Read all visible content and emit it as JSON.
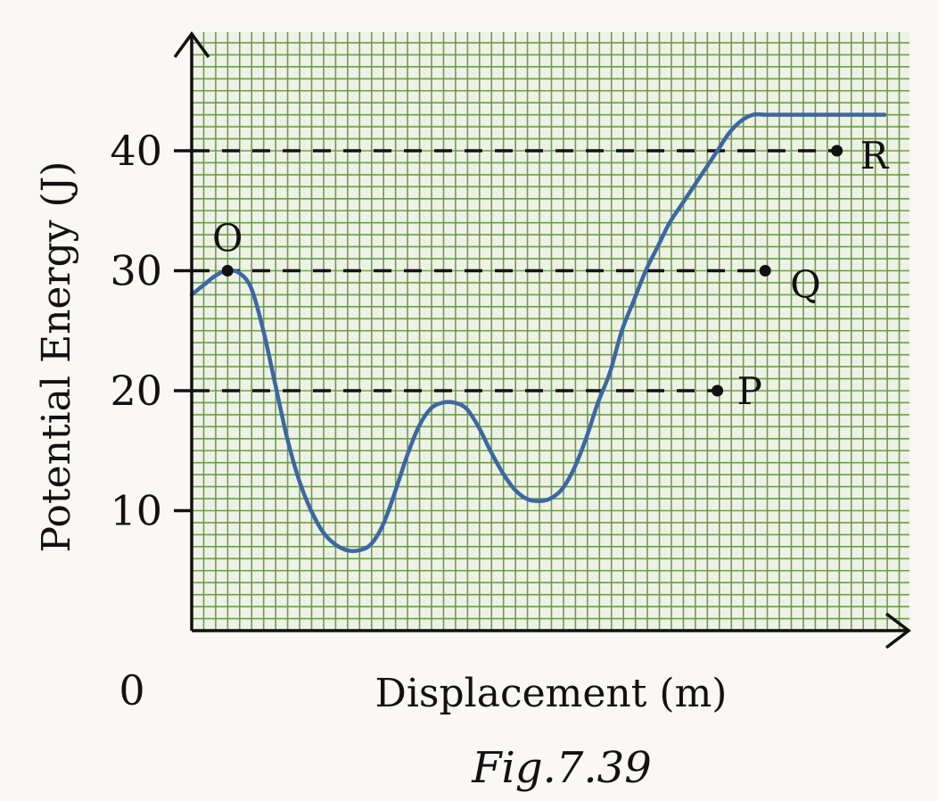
{
  "chart_data": {
    "type": "line",
    "title": "",
    "xlabel": "Displacement (m)",
    "ylabel": "Potential Energy (J)",
    "origin_label": "0",
    "caption": "Fig.7.39",
    "ylim": [
      0,
      50
    ],
    "xlim": [
      0,
      30
    ],
    "yticks": [
      10,
      20,
      30,
      40
    ],
    "ytick_labels": [
      "10",
      "20",
      "30",
      "40"
    ],
    "grid": true,
    "x": [
      0,
      0.5,
      1,
      1.5,
      2,
      2.5,
      3,
      3.5,
      4,
      4.5,
      5,
      5.5,
      6,
      6.5,
      7,
      7.5,
      8,
      8.5,
      9,
      9.5,
      10,
      10.5,
      11,
      11.5,
      12,
      12.5,
      13,
      13.5,
      14,
      14.5,
      15,
      15.5,
      16,
      16.5,
      17,
      17.5,
      18,
      18.5,
      19,
      19.5,
      20,
      20.5,
      21,
      21.5,
      22,
      22.5,
      23,
      23.5,
      24,
      24.5,
      25,
      25.5,
      26,
      26.5,
      27,
      27.5,
      28,
      28.5,
      29
    ],
    "y": [
      28,
      28.8,
      29.6,
      30,
      29.8,
      28.5,
      25,
      20.5,
      16,
      12.5,
      10,
      8.2,
      7.2,
      6.7,
      6.7,
      7.2,
      8.8,
      11.5,
      14.5,
      17,
      18.5,
      19,
      19,
      18.5,
      17,
      15,
      13.2,
      11.8,
      11,
      10.8,
      11,
      11.8,
      13.5,
      16,
      19,
      21.5,
      25,
      27.5,
      30,
      32,
      34,
      35.5,
      37,
      38.5,
      40,
      41.5,
      42.5,
      43,
      43,
      43,
      43,
      43,
      43,
      43,
      43,
      43,
      43,
      43,
      43
    ],
    "points": [
      {
        "label": "O",
        "x": 1.5,
        "y": 30
      },
      {
        "label": "P",
        "x": 22,
        "y": 20
      },
      {
        "label": "Q",
        "x": 24,
        "y": 30
      },
      {
        "label": "R",
        "x": 27,
        "y": 40
      }
    ],
    "dashed_levels": [
      {
        "y": 40,
        "to_point": "R"
      },
      {
        "y": 30,
        "to_point": "Q"
      },
      {
        "y": 20,
        "to_point": "P"
      }
    ],
    "colors": {
      "curve": "#3c67a3",
      "grid": "#6f9a52",
      "grid_bg": "#eef2e4",
      "axis": "#111111"
    }
  }
}
